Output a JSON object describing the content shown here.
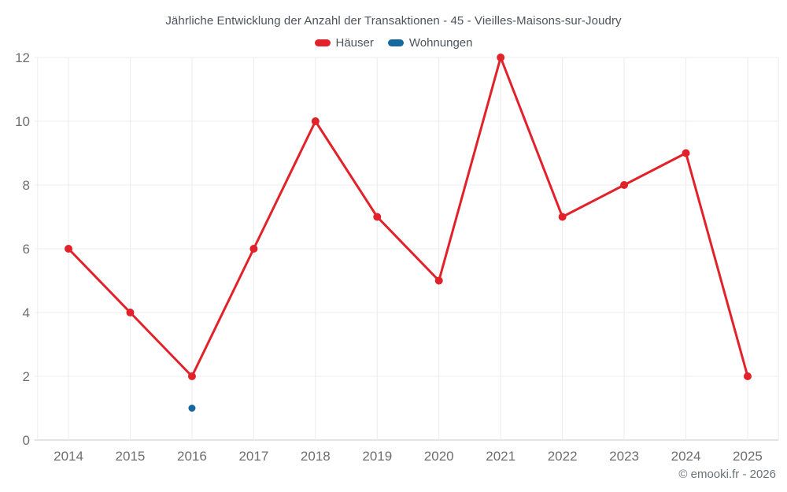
{
  "chart_data": {
    "type": "line",
    "title": "Jährliche Entwicklung der Anzahl der Transaktionen - 45 - Vieilles-Maisons-sur-Joudry",
    "categories": [
      "2014",
      "2015",
      "2016",
      "2017",
      "2018",
      "2019",
      "2020",
      "2021",
      "2022",
      "2023",
      "2024",
      "2025"
    ],
    "series": [
      {
        "name": "Häuser",
        "color": "#e2222a",
        "point_radius": 5,
        "values": [
          6,
          4,
          2,
          6,
          10,
          7,
          5,
          12,
          7,
          8,
          9,
          2
        ]
      },
      {
        "name": "Wohnungen",
        "color": "#15699e",
        "point_radius": 4.5,
        "values": [
          null,
          null,
          1,
          null,
          null,
          null,
          null,
          null,
          null,
          null,
          null,
          null
        ]
      }
    ],
    "xlabel": "",
    "ylabel": "",
    "ylim": [
      0,
      12
    ],
    "ytick_step": 2,
    "yticks": [
      0,
      2,
      4,
      6,
      8,
      10,
      12
    ],
    "grid": true,
    "legend_position": "top",
    "colors": {
      "grid_line": "#ececec",
      "axis_line": "#c9c9c9",
      "tick_label": "#6e6e6e"
    }
  },
  "footer": {
    "copyright": "© emooki.fr - 2026"
  }
}
